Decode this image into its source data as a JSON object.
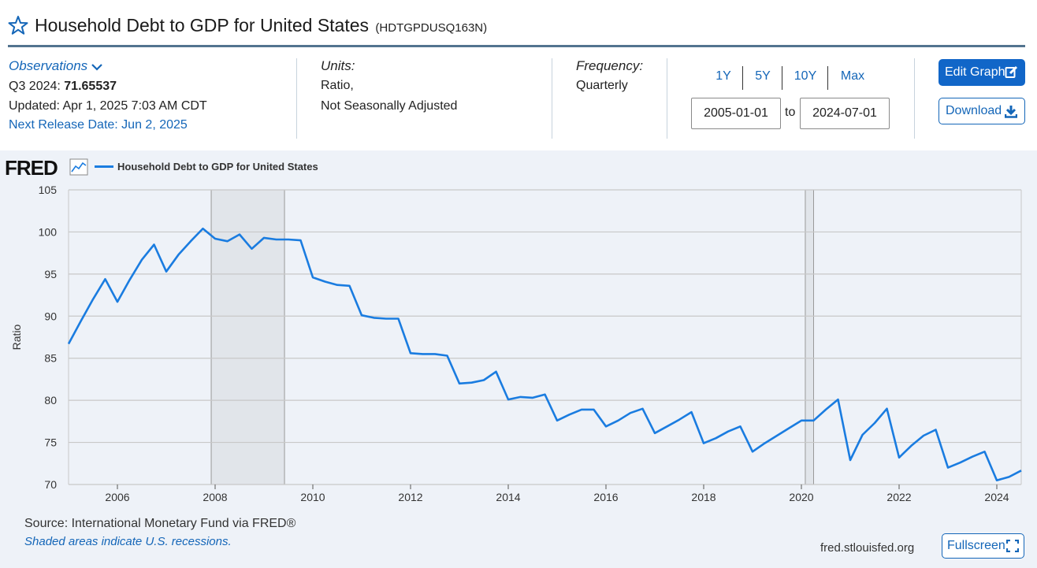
{
  "header": {
    "title": "Household Debt to GDP for United States",
    "series_id": "(HDTGPDUSQ163N)"
  },
  "observations": {
    "label": "Observations",
    "period": "Q3 2024:",
    "value": "71.65537",
    "updated": "Updated: Apr 1, 2025 7:03 AM CDT",
    "next_release": "Next Release Date: Jun 2, 2025"
  },
  "units": {
    "heading": "Units:",
    "line1": "Ratio,",
    "line2": "Not Seasonally Adjusted"
  },
  "frequency": {
    "heading": "Frequency:",
    "value": "Quarterly"
  },
  "range": {
    "buttons": [
      "1Y",
      "5Y",
      "10Y",
      "Max"
    ],
    "start": "2005-01-01",
    "to": "to",
    "end": "2024-07-01"
  },
  "actions": {
    "edit_graph": "Edit Graph",
    "download": "Download",
    "fullscreen": "Fullscreen"
  },
  "chart_header": {
    "logo": "FRED",
    "legend": "Household Debt to GDP for United States"
  },
  "footer": {
    "source": "Source: International Monetary Fund via FRED®",
    "recession_note": "Shaded areas indicate U.S. recessions.",
    "url": "fred.stlouisfed.org"
  },
  "colors": {
    "series": "#1a7ce0",
    "link": "#1466b8",
    "button": "#1166c8",
    "recession": "#e1e5ea"
  },
  "chart_data": {
    "type": "line",
    "ylabel": "Ratio",
    "ylim": [
      70,
      105
    ],
    "yticks": [
      70,
      75,
      80,
      85,
      90,
      95,
      100,
      105
    ],
    "xlim": [
      2005.0,
      2024.5
    ],
    "xticks": [
      2006,
      2008,
      2010,
      2012,
      2014,
      2016,
      2018,
      2020,
      2022,
      2024
    ],
    "grid": true,
    "recessions": [
      [
        2007.92,
        2009.42
      ],
      [
        2020.08,
        2020.25
      ]
    ],
    "series": [
      {
        "name": "Household Debt to GDP for United States",
        "x": [
          2005.0,
          2005.25,
          2005.5,
          2005.75,
          2006.0,
          2006.25,
          2006.5,
          2006.75,
          2007.0,
          2007.25,
          2007.5,
          2007.75,
          2008.0,
          2008.25,
          2008.5,
          2008.75,
          2009.0,
          2009.25,
          2009.5,
          2009.75,
          2010.0,
          2010.25,
          2010.5,
          2010.75,
          2011.0,
          2011.25,
          2011.5,
          2011.75,
          2012.0,
          2012.25,
          2012.5,
          2012.75,
          2013.0,
          2013.25,
          2013.5,
          2013.75,
          2014.0,
          2014.25,
          2014.5,
          2014.75,
          2015.0,
          2015.25,
          2015.5,
          2015.75,
          2016.0,
          2016.25,
          2016.5,
          2016.75,
          2017.0,
          2017.25,
          2017.5,
          2017.75,
          2018.0,
          2018.25,
          2018.5,
          2018.75,
          2019.0,
          2019.25,
          2019.5,
          2019.75,
          2020.0,
          2020.25,
          2020.5,
          2020.75,
          2021.0,
          2021.25,
          2021.5,
          2021.75,
          2022.0,
          2022.25,
          2022.5,
          2022.75,
          2023.0,
          2023.25,
          2023.5,
          2023.75,
          2024.0,
          2024.25,
          2024.5
        ],
        "values": [
          86.7,
          89.4,
          92.0,
          94.4,
          91.7,
          94.3,
          96.7,
          98.5,
          95.3,
          97.3,
          98.9,
          100.4,
          99.2,
          98.9,
          99.7,
          98.0,
          99.3,
          99.1,
          99.1,
          99.0,
          94.6,
          94.1,
          93.7,
          93.6,
          90.1,
          89.8,
          89.7,
          89.7,
          85.6,
          85.5,
          85.5,
          85.3,
          82.0,
          82.1,
          82.4,
          83.4,
          80.1,
          80.4,
          80.3,
          80.7,
          77.6,
          78.3,
          78.9,
          78.9,
          76.9,
          77.6,
          78.5,
          79.0,
          76.1,
          76.9,
          77.7,
          78.6,
          74.9,
          75.5,
          76.3,
          76.9,
          73.9,
          74.9,
          75.8,
          76.7,
          77.6,
          77.6,
          78.9,
          80.1,
          72.9,
          75.9,
          77.3,
          79.0,
          73.2,
          74.6,
          75.8,
          76.5,
          72.0,
          72.6,
          73.3,
          73.9,
          70.5,
          70.9,
          71.65537
        ]
      }
    ]
  }
}
